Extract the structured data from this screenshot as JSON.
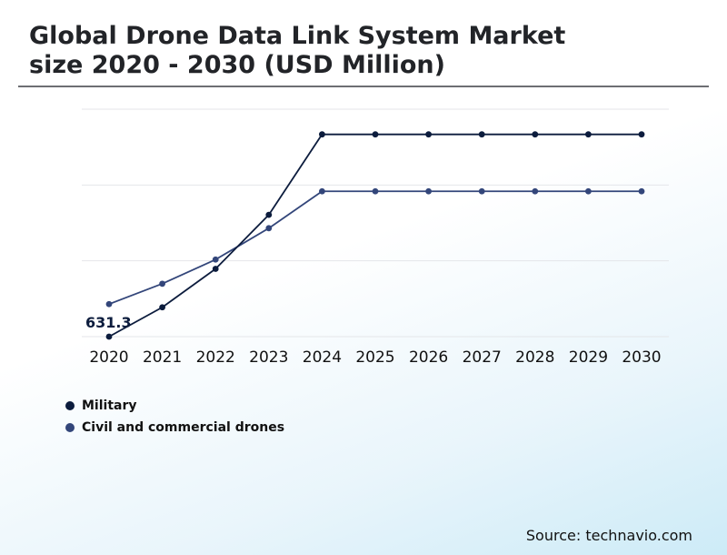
{
  "title_lines": [
    "Global Drone Data Link System Market",
    "size 2020 - 2030 (USD Million)"
  ],
  "source": "Source: technavio.com",
  "chart_data": {
    "type": "line",
    "title": "Global Drone Data Link System Market size 2020 - 2030 (USD Million)",
    "xlabel": "",
    "ylabel": "",
    "x": [
      "2020",
      "2021",
      "2022",
      "2023",
      "2024",
      "2025",
      "2026",
      "2027",
      "2028",
      "2029",
      "2030"
    ],
    "ylim": [
      631.3,
      4000
    ],
    "grid": true,
    "legend_position": "bottom-left",
    "series": [
      {
        "name": "Military",
        "color": "#0c1c3d",
        "values": [
          631.3,
          1066,
          1635,
          2435,
          3627,
          3627,
          3627,
          3627,
          3627,
          3627,
          3627
        ]
      },
      {
        "name": "Civil and commercial drones",
        "color": "#33467a",
        "values": [
          1113,
          1415,
          1773,
          2237,
          2784,
          2784,
          2784,
          2784,
          2784,
          2784,
          2784
        ]
      }
    ],
    "annotations": [
      {
        "series": 0,
        "index": 0,
        "text": "631.3"
      }
    ]
  }
}
